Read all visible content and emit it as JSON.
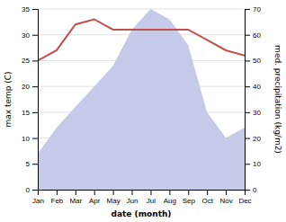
{
  "chart_data": {
    "type": "line",
    "categories": [
      "Jan",
      "Feb",
      "Mar",
      "Apr",
      "May",
      "Jun",
      "Jul",
      "Aug",
      "Sep",
      "Oct",
      "Nov",
      "Dec"
    ],
    "xlabel": "date (month)",
    "ylabel": "max temp (C)",
    "y2label": "med. precipitation (kg/m2)",
    "ylim": [
      0,
      35
    ],
    "yticks": [
      0,
      5,
      10,
      15,
      20,
      25,
      30,
      35
    ],
    "y2lim": [
      0,
      70
    ],
    "y2ticks": [
      0,
      10,
      20,
      30,
      40,
      50,
      60,
      70
    ],
    "grid": true,
    "series": [
      {
        "type": "area",
        "axis": "y2",
        "color": "#c5cae9",
        "values": [
          14,
          24,
          32,
          40,
          48,
          62,
          70,
          66,
          56,
          30,
          20,
          24
        ]
      },
      {
        "type": "line",
        "color": "#c0504d",
        "values": [
          25,
          27,
          32,
          33,
          31,
          31,
          31,
          31,
          31,
          29,
          27,
          26
        ]
      }
    ]
  }
}
